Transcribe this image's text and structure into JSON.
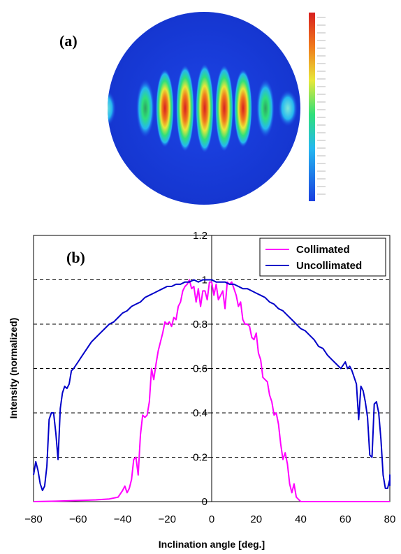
{
  "panel_a": {
    "label": "(a)",
    "description_colors": [
      "#1a3fe0",
      "#25b8f0",
      "#2fe07a",
      "#e8e83a",
      "#f07a1c",
      "#d82020"
    ]
  },
  "chart_data": {
    "type": "line",
    "panel_label": "(b)",
    "xlabel": "Inclination angle [deg.]",
    "ylabel": "Intensity (normalized)",
    "xlim": [
      -80,
      80
    ],
    "ylim": [
      0,
      1.2
    ],
    "x_ticks": [
      "-80",
      "-60",
      "-40",
      "-20",
      "0",
      "20",
      "40",
      "60",
      "80"
    ],
    "y_ticks": [
      "0",
      "0.2",
      "0.4",
      "0.6",
      "0.8",
      "1",
      "1.2"
    ],
    "grid": "horizontal dashed",
    "legend_position": "top-right",
    "series": [
      {
        "name": "Collimated",
        "color": "#ff00ff",
        "points": [
          [
            -80,
            0
          ],
          [
            -70,
            0.002
          ],
          [
            -60,
            0.005
          ],
          [
            -52,
            0.008
          ],
          [
            -46,
            0.012
          ],
          [
            -42,
            0.02
          ],
          [
            -40,
            0.05
          ],
          [
            -39,
            0.07
          ],
          [
            -38,
            0.04
          ],
          [
            -37,
            0.06
          ],
          [
            -36,
            0.1
          ],
          [
            -35,
            0.19
          ],
          [
            -34,
            0.2
          ],
          [
            -33,
            0.12
          ],
          [
            -32,
            0.3
          ],
          [
            -31,
            0.39
          ],
          [
            -30,
            0.38
          ],
          [
            -29,
            0.39
          ],
          [
            -28,
            0.45
          ],
          [
            -27,
            0.6
          ],
          [
            -26,
            0.55
          ],
          [
            -25,
            0.62
          ],
          [
            -24,
            0.68
          ],
          [
            -23,
            0.72
          ],
          [
            -22,
            0.76
          ],
          [
            -21,
            0.81
          ],
          [
            -20,
            0.8
          ],
          [
            -19,
            0.81
          ],
          [
            -18,
            0.79
          ],
          [
            -17,
            0.83
          ],
          [
            -16,
            0.82
          ],
          [
            -15,
            0.88
          ],
          [
            -14,
            0.9
          ],
          [
            -13,
            0.95
          ],
          [
            -12,
            0.97
          ],
          [
            -11,
            0.98
          ],
          [
            -10,
            1.0
          ],
          [
            -9,
            0.96
          ],
          [
            -8,
            0.97
          ],
          [
            -7,
            0.9
          ],
          [
            -6,
            0.96
          ],
          [
            -5,
            0.88
          ],
          [
            -4,
            0.95
          ],
          [
            -3,
            0.95
          ],
          [
            -2,
            0.91
          ],
          [
            -1,
            0.99
          ],
          [
            0,
            0.99
          ],
          [
            1,
            0.93
          ],
          [
            2,
            0.98
          ],
          [
            3,
            0.91
          ],
          [
            4,
            0.93
          ],
          [
            5,
            0.95
          ],
          [
            6,
            0.87
          ],
          [
            7,
            0.99
          ],
          [
            8,
            0.98
          ],
          [
            9,
            0.99
          ],
          [
            10,
            0.96
          ],
          [
            11,
            0.93
          ],
          [
            12,
            0.88
          ],
          [
            13,
            0.9
          ],
          [
            14,
            0.82
          ],
          [
            15,
            0.8
          ],
          [
            16,
            0.8
          ],
          [
            17,
            0.79
          ],
          [
            18,
            0.74
          ],
          [
            19,
            0.73
          ],
          [
            20,
            0.76
          ],
          [
            21,
            0.67
          ],
          [
            22,
            0.64
          ],
          [
            23,
            0.56
          ],
          [
            24,
            0.55
          ],
          [
            25,
            0.54
          ],
          [
            26,
            0.48
          ],
          [
            27,
            0.45
          ],
          [
            28,
            0.39
          ],
          [
            29,
            0.4
          ],
          [
            30,
            0.35
          ],
          [
            31,
            0.26
          ],
          [
            32,
            0.19
          ],
          [
            33,
            0.22
          ],
          [
            34,
            0.17
          ],
          [
            35,
            0.08
          ],
          [
            36,
            0.04
          ],
          [
            37,
            0.08
          ],
          [
            38,
            0.02
          ],
          [
            39,
            0.01
          ],
          [
            40,
            0.0
          ],
          [
            50,
            0.0
          ],
          [
            80,
            0.0
          ]
        ]
      },
      {
        "name": "Uncollimated",
        "color": "#0000c8",
        "points": [
          [
            -80,
            0.12
          ],
          [
            -79,
            0.18
          ],
          [
            -78,
            0.14
          ],
          [
            -77,
            0.08
          ],
          [
            -76,
            0.05
          ],
          [
            -75,
            0.07
          ],
          [
            -74,
            0.16
          ],
          [
            -73,
            0.37
          ],
          [
            -72,
            0.4
          ],
          [
            -71,
            0.4
          ],
          [
            -70,
            0.31
          ],
          [
            -69,
            0.19
          ],
          [
            -68,
            0.42
          ],
          [
            -67,
            0.49
          ],
          [
            -66,
            0.52
          ],
          [
            -65,
            0.51
          ],
          [
            -64,
            0.53
          ],
          [
            -63,
            0.59
          ],
          [
            -62,
            0.6
          ],
          [
            -60,
            0.63
          ],
          [
            -58,
            0.66
          ],
          [
            -56,
            0.69
          ],
          [
            -54,
            0.72
          ],
          [
            -52,
            0.74
          ],
          [
            -50,
            0.76
          ],
          [
            -48,
            0.78
          ],
          [
            -46,
            0.8
          ],
          [
            -44,
            0.81
          ],
          [
            -42,
            0.83
          ],
          [
            -40,
            0.85
          ],
          [
            -38,
            0.86
          ],
          [
            -36,
            0.88
          ],
          [
            -34,
            0.89
          ],
          [
            -32,
            0.9
          ],
          [
            -30,
            0.92
          ],
          [
            -28,
            0.93
          ],
          [
            -26,
            0.94
          ],
          [
            -24,
            0.95
          ],
          [
            -22,
            0.96
          ],
          [
            -20,
            0.97
          ],
          [
            -18,
            0.97
          ],
          [
            -16,
            0.98
          ],
          [
            -14,
            0.98
          ],
          [
            -12,
            0.99
          ],
          [
            -10,
            0.99
          ],
          [
            -8,
            1.0
          ],
          [
            -6,
            0.99
          ],
          [
            -4,
            1.0
          ],
          [
            -2,
            1.0
          ],
          [
            0,
            1.0
          ],
          [
            2,
            0.99
          ],
          [
            4,
            0.99
          ],
          [
            6,
            0.99
          ],
          [
            8,
            0.98
          ],
          [
            10,
            0.98
          ],
          [
            12,
            0.97
          ],
          [
            14,
            0.96
          ],
          [
            16,
            0.96
          ],
          [
            18,
            0.95
          ],
          [
            20,
            0.94
          ],
          [
            22,
            0.93
          ],
          [
            24,
            0.92
          ],
          [
            26,
            0.9
          ],
          [
            28,
            0.89
          ],
          [
            30,
            0.87
          ],
          [
            32,
            0.86
          ],
          [
            34,
            0.84
          ],
          [
            36,
            0.82
          ],
          [
            38,
            0.8
          ],
          [
            40,
            0.78
          ],
          [
            42,
            0.77
          ],
          [
            44,
            0.75
          ],
          [
            46,
            0.73
          ],
          [
            48,
            0.7
          ],
          [
            50,
            0.69
          ],
          [
            52,
            0.66
          ],
          [
            54,
            0.64
          ],
          [
            56,
            0.62
          ],
          [
            58,
            0.6
          ],
          [
            60,
            0.63
          ],
          [
            61,
            0.6
          ],
          [
            62,
            0.61
          ],
          [
            63,
            0.59
          ],
          [
            64,
            0.56
          ],
          [
            65,
            0.53
          ],
          [
            66,
            0.37
          ],
          [
            67,
            0.52
          ],
          [
            68,
            0.5
          ],
          [
            69,
            0.45
          ],
          [
            70,
            0.38
          ],
          [
            71,
            0.21
          ],
          [
            72,
            0.2
          ],
          [
            73,
            0.44
          ],
          [
            74,
            0.45
          ],
          [
            75,
            0.4
          ],
          [
            76,
            0.28
          ],
          [
            77,
            0.12
          ],
          [
            78,
            0.06
          ],
          [
            79,
            0.06
          ],
          [
            80,
            0.1
          ],
          [
            81,
            0.12
          ],
          [
            82,
            0.07
          ]
        ]
      }
    ]
  }
}
